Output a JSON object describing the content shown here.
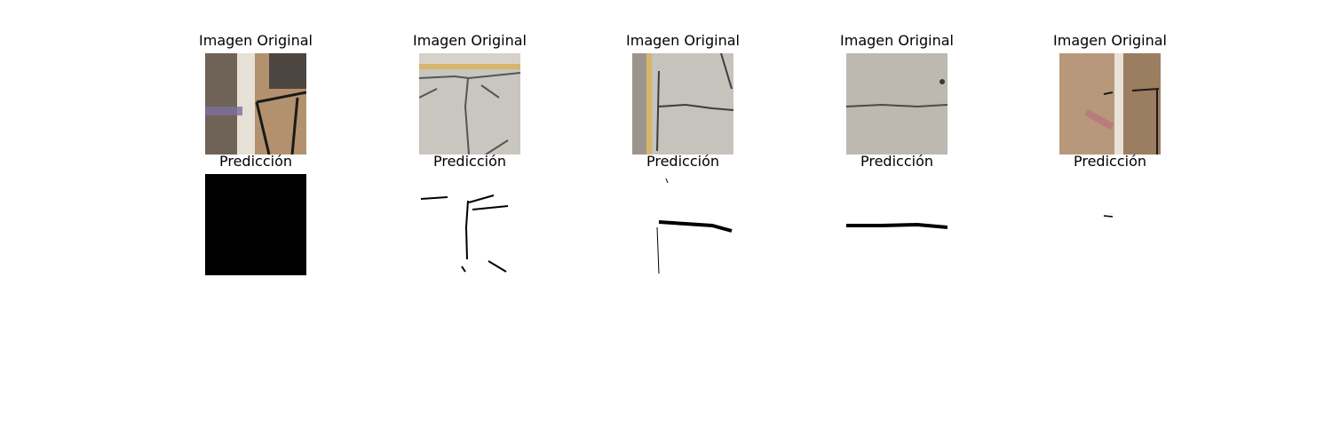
{
  "titles": {
    "original": "Imagen Original",
    "prediction": "Predicción"
  },
  "panels": [
    {
      "original_title": "Imagen Original",
      "prediction_title": "Predicción"
    },
    {
      "original_title": "Imagen Original",
      "prediction_title": "Predicción"
    },
    {
      "original_title": "Imagen Original",
      "prediction_title": "Predicción"
    },
    {
      "original_title": "Imagen Original",
      "prediction_title": "Predicción"
    },
    {
      "original_title": "Imagen Original",
      "prediction_title": "Predicción"
    }
  ],
  "colors": {
    "background": "#ffffff",
    "mask_foreground": "#000000",
    "mask_background": "#ffffff"
  }
}
